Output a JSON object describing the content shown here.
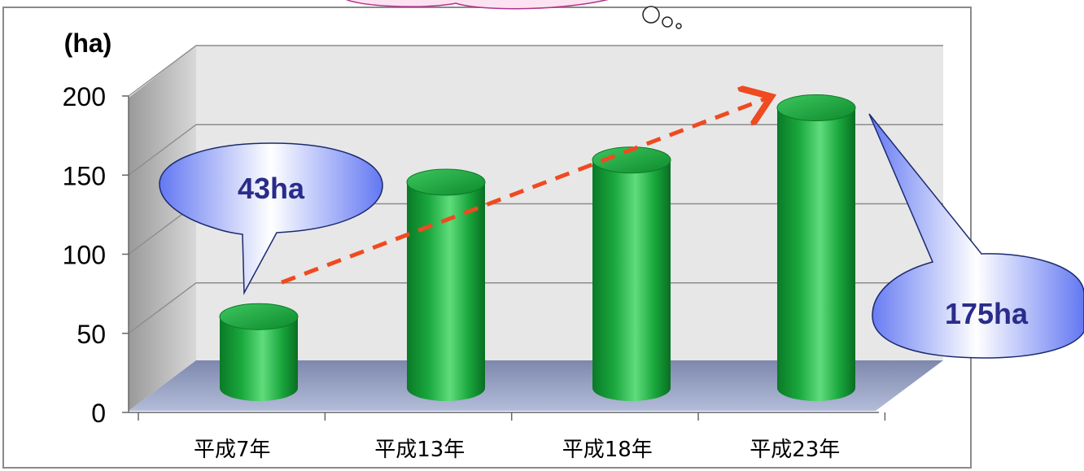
{
  "colors": {
    "bar": "#12a33a",
    "bar_dark": "#0a7a27",
    "bar_light": "#4fd46f",
    "wall": "#e6e6e6",
    "floor": "#97a3c6",
    "arrow": "#f04a20",
    "callout_text": "#2a2c8a",
    "callout_fill_light": "#ffffff",
    "callout_fill_dark": "#5d73f0",
    "thought_fill": "#fde2f2",
    "thought_stroke": "#b0338a"
  },
  "chart_data": {
    "type": "bar",
    "unit_label": "(ha)",
    "categories": [
      "平成7年",
      "平成13年",
      "平成18年",
      "平成23年"
    ],
    "values": [
      43,
      128,
      142,
      175
    ],
    "ylim": [
      0,
      200
    ],
    "yticks": [
      "0",
      "50",
      "100",
      "150",
      "200"
    ],
    "grid": true,
    "annotations": [
      {
        "text": "43ha",
        "target": "平成7年"
      },
      {
        "text": "175ha",
        "target": "平成23年"
      }
    ],
    "trend_arrow": {
      "from": "平成7年",
      "to": "平成23年"
    }
  }
}
